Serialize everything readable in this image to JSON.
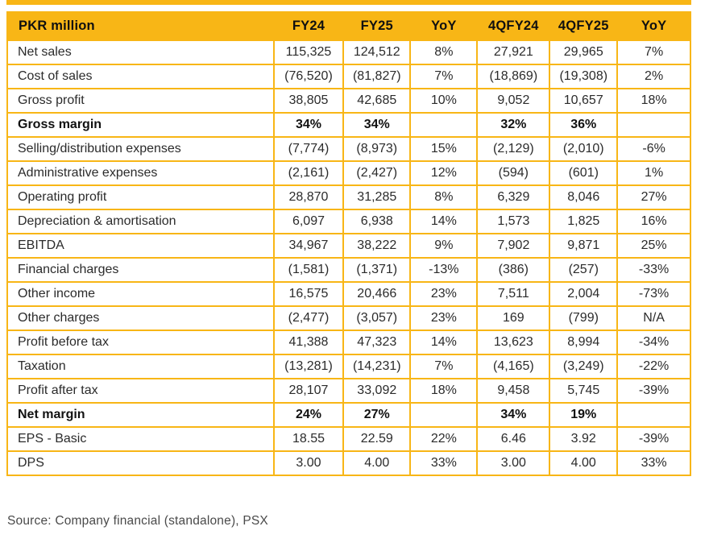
{
  "colors": {
    "gold": "#F8B616",
    "text": "#2b2b2b",
    "source_text": "#4a4a4a"
  },
  "table": {
    "headers": [
      "PKR million",
      "FY24",
      "FY25",
      "YoY",
      "4QFY24",
      "4QFY25",
      "YoY"
    ],
    "rows": [
      {
        "label": "Net sales",
        "values": [
          "115,325",
          "124,512",
          "8%",
          "27,921",
          "29,965",
          "7%"
        ],
        "bold": false
      },
      {
        "label": "Cost of sales",
        "values": [
          "(76,520)",
          "(81,827)",
          "7%",
          "(18,869)",
          "(19,308)",
          "2%"
        ],
        "bold": false
      },
      {
        "label": "Gross profit",
        "values": [
          "38,805",
          "42,685",
          "10%",
          "9,052",
          "10,657",
          "18%"
        ],
        "bold": false
      },
      {
        "label": "Gross margin",
        "values": [
          "34%",
          "34%",
          "",
          "32%",
          "36%",
          ""
        ],
        "bold": true
      },
      {
        "label": "Selling/distribution expenses",
        "values": [
          "(7,774)",
          "(8,973)",
          "15%",
          "(2,129)",
          "(2,010)",
          "-6%"
        ],
        "bold": false
      },
      {
        "label": "Administrative expenses",
        "values": [
          "(2,161)",
          "(2,427)",
          "12%",
          "(594)",
          "(601)",
          "1%"
        ],
        "bold": false
      },
      {
        "label": "Operating profit",
        "values": [
          "28,870",
          "31,285",
          "8%",
          "6,329",
          "8,046",
          "27%"
        ],
        "bold": false
      },
      {
        "label": "Depreciation & amortisation",
        "values": [
          "6,097",
          "6,938",
          "14%",
          "1,573",
          "1,825",
          "16%"
        ],
        "bold": false
      },
      {
        "label": "EBITDA",
        "values": [
          "34,967",
          "38,222",
          "9%",
          "7,902",
          "9,871",
          "25%"
        ],
        "bold": false
      },
      {
        "label": "Financial charges",
        "values": [
          "(1,581)",
          "(1,371)",
          "-13%",
          "(386)",
          "(257)",
          "-33%"
        ],
        "bold": false
      },
      {
        "label": "Other income",
        "values": [
          "16,575",
          "20,466",
          "23%",
          "7,511",
          "2,004",
          "-73%"
        ],
        "bold": false
      },
      {
        "label": "Other charges",
        "values": [
          "(2,477)",
          "(3,057)",
          "23%",
          "169",
          "(799)",
          "N/A"
        ],
        "bold": false
      },
      {
        "label": "Profit before tax",
        "values": [
          "41,388",
          "47,323",
          "14%",
          "13,623",
          "8,994",
          "-34%"
        ],
        "bold": false
      },
      {
        "label": "Taxation",
        "values": [
          "(13,281)",
          "(14,231)",
          "7%",
          "(4,165)",
          "(3,249)",
          "-22%"
        ],
        "bold": false
      },
      {
        "label": "Profit after tax",
        "values": [
          "28,107",
          "33,092",
          "18%",
          "9,458",
          "5,745",
          "-39%"
        ],
        "bold": false
      },
      {
        "label": "Net margin",
        "values": [
          "24%",
          "27%",
          "",
          "34%",
          "19%",
          ""
        ],
        "bold": true
      },
      {
        "label": "EPS - Basic",
        "values": [
          "18.55",
          "22.59",
          "22%",
          "6.46",
          "3.92",
          "-39%"
        ],
        "bold": false
      },
      {
        "label": "DPS",
        "values": [
          "3.00",
          "4.00",
          "33%",
          "3.00",
          "4.00",
          "33%"
        ],
        "bold": false
      }
    ]
  },
  "source_note": "Source: Company financial (standalone), PSX"
}
